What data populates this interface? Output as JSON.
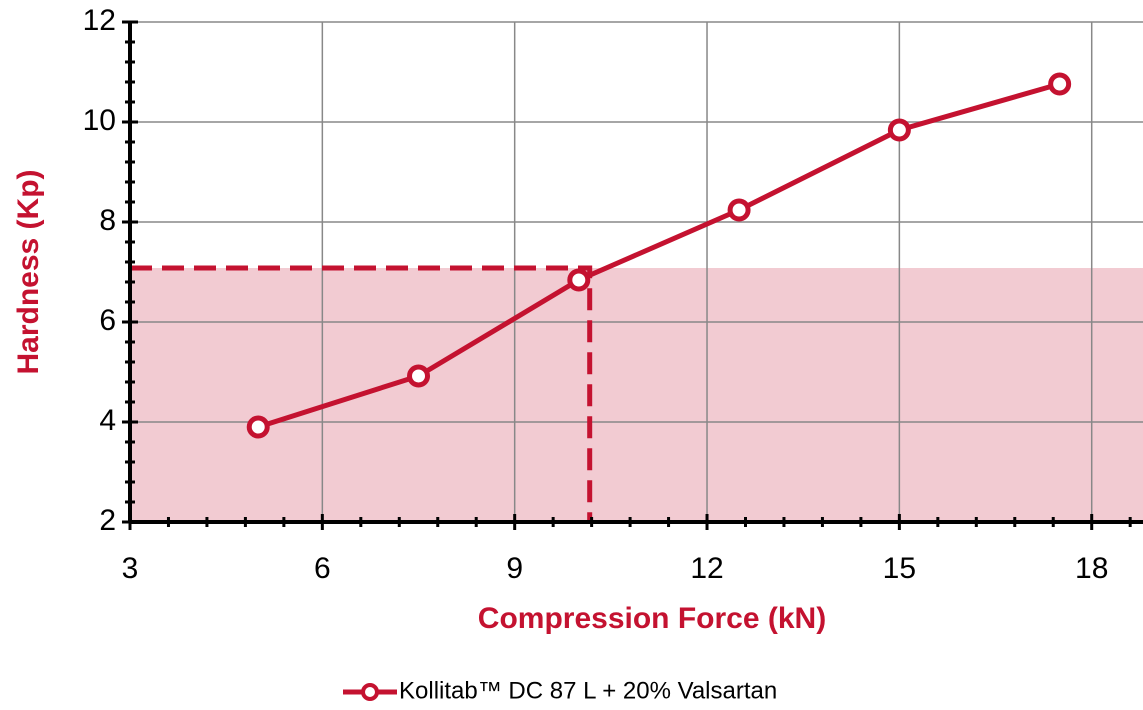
{
  "chart_data": {
    "type": "line",
    "x_label": "Compression Force (kN)",
    "y_label": "Hardness (Kp)",
    "series": [
      {
        "name": "Kollitab™ DC 87 L + 20% Valsartan",
        "color": "#c41230",
        "x": [
          5,
          7.5,
          10,
          12.5,
          15,
          17.5
        ],
        "values": [
          3.9,
          4.92,
          6.84,
          8.24,
          9.84,
          10.76
        ]
      }
    ],
    "threshold": {
      "x": 10.17,
      "y": 7.08,
      "color": "#c41230",
      "fill": "#f2cbd2"
    },
    "xlim": [
      3,
      18.8
    ],
    "xticks": [
      3,
      6,
      9,
      12,
      15,
      18
    ],
    "xminorticks": [
      3.6,
      4.2,
      4.8,
      5.4,
      6.6,
      7.2,
      7.8,
      8.4,
      9.6,
      10.2,
      10.8,
      11.4,
      12.6,
      13.2,
      13.8,
      14.4,
      15.6,
      16.2,
      16.8,
      17.4,
      18.6
    ],
    "ylim": [
      2,
      12
    ],
    "yticks": [
      2,
      4,
      6,
      8,
      10,
      12
    ],
    "yminorticks": [
      2.4,
      2.8,
      3.2,
      3.6,
      4.4,
      4.8,
      5.2,
      5.6,
      6.4,
      6.8,
      7.2,
      7.6,
      8.4,
      8.8,
      9.2,
      9.6,
      10.4,
      10.8,
      11.2,
      11.6
    ],
    "grid": true,
    "legend": "bottom"
  }
}
